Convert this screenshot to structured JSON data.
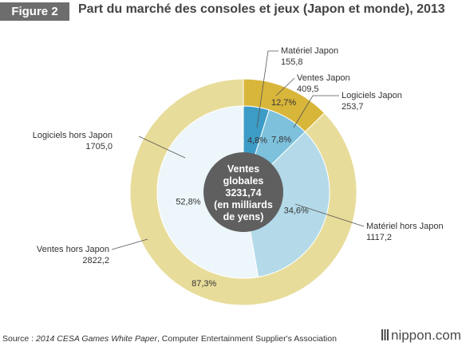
{
  "figure_label": "Figure 2",
  "title": "Part du marché des consoles et jeux (Japon et monde), 2013",
  "source": {
    "prefix": "Source : ",
    "publication": "2014 CESA Games White Paper",
    "suffix": ", Computer Entertainment Supplier's Association"
  },
  "brand": "nippon.com",
  "chart_data": {
    "type": "pie",
    "subtype": "nested-donut",
    "center_label": [
      "Ventes",
      "globales",
      "3231,74",
      "(en milliards",
      "de yens)"
    ],
    "total": 3231.74,
    "unit": "milliards de yens",
    "rings": [
      {
        "ring": "outer",
        "slices": [
          {
            "label": "Ventes Japon",
            "value": 409.5,
            "percent_label": "12,7%",
            "color": "#d8b63a"
          },
          {
            "label": "Ventes hors Japon",
            "value": 2822.2,
            "percent_label": "87,3%",
            "color": "#e8dc9a"
          }
        ]
      },
      {
        "ring": "inner",
        "slices": [
          {
            "label": "Matériel Japon",
            "value": 155.8,
            "percent_label": "4,8%",
            "color": "#3d9cc6"
          },
          {
            "label": "Logiciels Japon",
            "value": 253.7,
            "percent_label": "7,8%",
            "color": "#7dc1dc"
          },
          {
            "label": "Matériel hors Japon",
            "value": 1117.2,
            "percent_label": "34,6%",
            "color": "#b4dae9"
          },
          {
            "label": "Logiciels hors Japon",
            "value": 1705.0,
            "percent_label": "52,8%",
            "color": "#edf6fa"
          }
        ]
      }
    ],
    "callouts": [
      {
        "label": "Matériel Japon",
        "value": "155,8"
      },
      {
        "label": "Ventes Japon",
        "value": "409,5"
      },
      {
        "label": "Logiciels Japon",
        "value": "253,7"
      },
      {
        "label": "Logiciels hors Japon",
        "value": "1705,0"
      },
      {
        "label": "Matériel hors Japon",
        "value": "1117,2"
      },
      {
        "label": "Ventes hors Japon",
        "value": "2822,2"
      }
    ],
    "colors": {
      "center": "#5f5f5f",
      "stroke": "#ffffff",
      "leader": "#555555"
    }
  }
}
